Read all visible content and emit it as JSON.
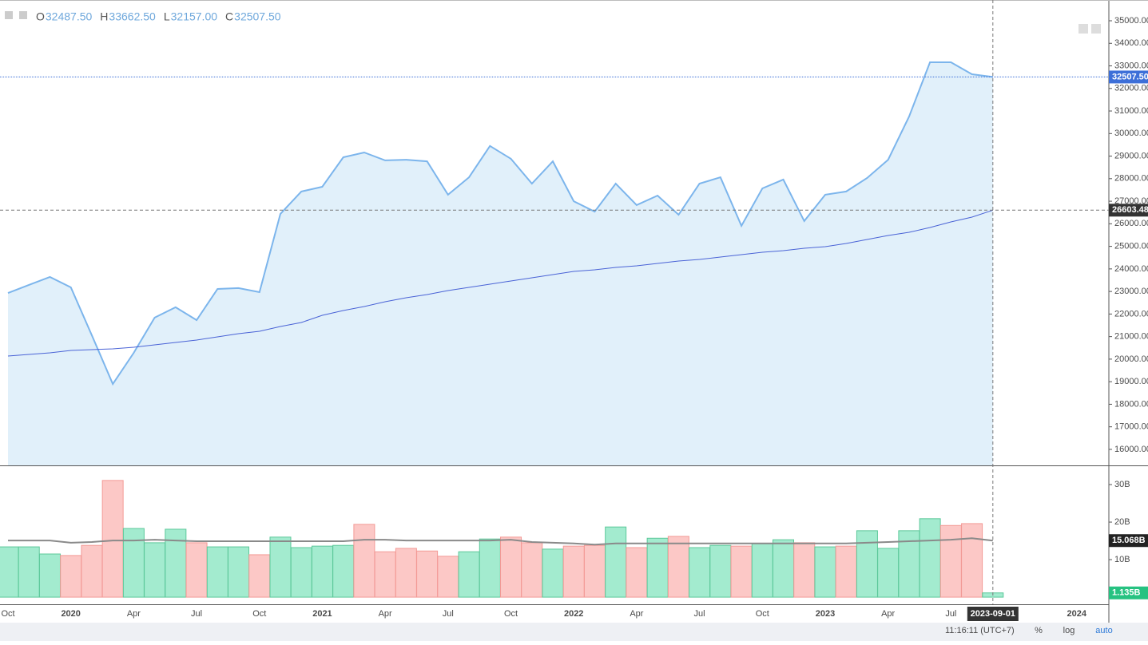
{
  "legend": {
    "keys": [
      "O",
      "H",
      "L",
      "C"
    ],
    "values": [
      32487.5,
      33662.5,
      32157,
      32507.5
    ],
    "value_labels": [
      "32487.50",
      "33662.50",
      "32157.00",
      "32507.50"
    ]
  },
  "status_bar": {
    "time": "11:16:11 (UTC+7)",
    "buttons": [
      "%",
      "log",
      "auto"
    ]
  },
  "crosshair_label": "2023-09-01",
  "chart_data": [
    {
      "type": "area",
      "x": [
        "2019-10",
        "2019-11",
        "2019-12",
        "2020-01",
        "2020-02",
        "2020-03",
        "2020-04",
        "2020-05",
        "2020-06",
        "2020-07",
        "2020-08",
        "2020-09",
        "2020-10",
        "2020-11",
        "2020-12",
        "2021-01",
        "2021-02",
        "2021-03",
        "2021-04",
        "2021-05",
        "2021-06",
        "2021-07",
        "2021-08",
        "2021-09",
        "2021-10",
        "2021-11",
        "2021-12",
        "2022-01",
        "2022-02",
        "2022-03",
        "2022-04",
        "2022-05",
        "2022-06",
        "2022-07",
        "2022-08",
        "2022-09",
        "2022-10",
        "2022-11",
        "2022-12",
        "2023-01",
        "2023-02",
        "2023-03",
        "2023-04",
        "2023-05",
        "2023-06",
        "2023-07",
        "2023-08",
        "2023-09"
      ],
      "series": [
        {
          "color": "#7cb5ec",
          "fill": "#e1f0fa",
          "values": [
            22930,
            23290,
            23640,
            23180,
            21060,
            18900,
            20280,
            21840,
            22300,
            21730,
            23110,
            23150,
            22970,
            26440,
            27430,
            27640,
            28950,
            29160,
            28810,
            28840,
            28770,
            27290,
            28060,
            29450,
            28880,
            27780,
            28770,
            27000,
            26540,
            27780,
            26830,
            27250,
            26400,
            27780,
            28060,
            25910,
            27570,
            27960,
            26120,
            27290,
            27430,
            28030,
            28840,
            30750,
            33160,
            33160,
            32630,
            32507.5
          ]
        },
        {
          "color": "#4a63d6",
          "values": [
            20138,
            20209,
            20279,
            20386,
            20421,
            20456,
            20527,
            20633,
            20739,
            20846,
            20987,
            21129,
            21235,
            21447,
            21624,
            21943,
            22155,
            22332,
            22544,
            22721,
            22863,
            23040,
            23181,
            23323,
            23464,
            23606,
            23747,
            23889,
            23960,
            24066,
            24136,
            24243,
            24349,
            24420,
            24526,
            24632,
            24738,
            24809,
            24915,
            24986,
            25127,
            25304,
            25481,
            25623,
            25835,
            26083,
            26295,
            26603.48
          ]
        }
      ],
      "ylim": [
        15290,
        35920
      ],
      "yticks": [
        {
          "value": 16000,
          "label": "16000.00"
        },
        {
          "value": 17000,
          "label": "17000.00"
        },
        {
          "value": 18000,
          "label": "18000.00"
        },
        {
          "value": 19000,
          "label": "19000.00"
        },
        {
          "value": 20000,
          "label": "20000.00"
        },
        {
          "value": 21000,
          "label": "21000.00"
        },
        {
          "value": 22000,
          "label": "22000.00"
        },
        {
          "value": 23000,
          "label": "23000.00"
        },
        {
          "value": 24000,
          "label": "24000.00"
        },
        {
          "value": 25000,
          "label": "25000.00"
        },
        {
          "value": 26000,
          "label": "26000.00"
        },
        {
          "value": 27000,
          "label": "27000.00"
        },
        {
          "value": 28000,
          "label": "28000.00"
        },
        {
          "value": 29000,
          "label": "29000.00"
        },
        {
          "value": 30000,
          "label": "30000.00"
        },
        {
          "value": 31000,
          "label": "31000.00"
        },
        {
          "value": 32000,
          "label": "32000.00"
        },
        {
          "value": 33000,
          "label": "33000.00"
        },
        {
          "value": 34000,
          "label": "34000.00"
        },
        {
          "value": 35000,
          "label": "35000.00"
        }
      ],
      "badges": [
        {
          "value": 32507.5,
          "label": "32507.50",
          "color": "#3d6fd8"
        },
        {
          "value": 26603.48,
          "label": "26603.48",
          "color": "#333333"
        }
      ]
    },
    {
      "type": "bar",
      "x": [
        "2019-10",
        "2019-11",
        "2019-12",
        "2020-01",
        "2020-02",
        "2020-03",
        "2020-04",
        "2020-05",
        "2020-06",
        "2020-07",
        "2020-08",
        "2020-09",
        "2020-10",
        "2020-11",
        "2020-12",
        "2021-01",
        "2021-02",
        "2021-03",
        "2021-04",
        "2021-05",
        "2021-06",
        "2021-07",
        "2021-08",
        "2021-09",
        "2021-10",
        "2021-11",
        "2021-12",
        "2022-01",
        "2022-02",
        "2022-03",
        "2022-04",
        "2022-05",
        "2022-06",
        "2022-07",
        "2022-08",
        "2022-09",
        "2022-10",
        "2022-11",
        "2022-12",
        "2023-01",
        "2023-02",
        "2023-03",
        "2023-04",
        "2023-05",
        "2023-06",
        "2023-07",
        "2023-08",
        "2023-09"
      ],
      "values": [
        13.4,
        13.4,
        11.5,
        11.1,
        13.8,
        31.1,
        18.3,
        14.5,
        18.1,
        14.5,
        13.4,
        13.4,
        11.3,
        16.0,
        13.2,
        13.6,
        13.8,
        19.4,
        12.1,
        13.0,
        12.3,
        10.9,
        12.1,
        15.5,
        16.0,
        14.5,
        12.8,
        13.6,
        13.8,
        18.7,
        13.2,
        15.7,
        16.2,
        13.2,
        13.8,
        13.6,
        14.3,
        15.3,
        14.5,
        13.4,
        13.6,
        17.7,
        13.0,
        17.7,
        20.9,
        19.1,
        19.6,
        1.135
      ],
      "colors": [
        "#a3ebcf",
        "#a3ebcf",
        "#a3ebcf",
        "#fcc8c6",
        "#fcc8c6",
        "#fcc8c6",
        "#a3ebcf",
        "#a3ebcf",
        "#a3ebcf",
        "#fcc8c6",
        "#a3ebcf",
        "#a3ebcf",
        "#fcc8c6",
        "#a3ebcf",
        "#a3ebcf",
        "#a3ebcf",
        "#a3ebcf",
        "#fcc8c6",
        "#fcc8c6",
        "#fcc8c6",
        "#fcc8c6",
        "#fcc8c6",
        "#a3ebcf",
        "#a3ebcf",
        "#fcc8c6",
        "#fcc8c6",
        "#a3ebcf",
        "#fcc8c6",
        "#fcc8c6",
        "#a3ebcf",
        "#fcc8c6",
        "#a3ebcf",
        "#fcc8c6",
        "#a3ebcf",
        "#a3ebcf",
        "#fcc8c6",
        "#a3ebcf",
        "#a3ebcf",
        "#fcc8c6",
        "#a3ebcf",
        "#fcc8c6",
        "#a3ebcf",
        "#a3ebcf",
        "#a3ebcf",
        "#a3ebcf",
        "#fcc8c6",
        "#fcc8c6",
        "#a3ebcf"
      ],
      "ma": {
        "color": "#8a8a8a",
        "values": [
          15.1,
          15.1,
          15.1,
          14.5,
          14.7,
          15.1,
          15.1,
          15.3,
          15.1,
          14.9,
          14.9,
          14.9,
          14.9,
          14.9,
          14.9,
          14.9,
          14.9,
          15.3,
          15.3,
          15.1,
          15.1,
          15.1,
          15.1,
          15.1,
          15.3,
          14.7,
          14.5,
          14.3,
          14.0,
          14.3,
          14.3,
          14.3,
          14.3,
          14.3,
          14.3,
          14.3,
          14.3,
          14.3,
          14.3,
          14.3,
          14.3,
          14.5,
          14.7,
          14.9,
          15.1,
          15.3,
          15.7,
          15.068
        ]
      },
      "ylim": [
        -1.9,
        34.9
      ],
      "yticks": [
        {
          "value": 10,
          "label": "10B"
        },
        {
          "value": 20,
          "label": "20B"
        },
        {
          "value": 30,
          "label": "30B"
        }
      ],
      "badges": [
        {
          "value": 15.068,
          "label": "15.068B",
          "color": "#222222"
        },
        {
          "value": 1.135,
          "label": "1.135B",
          "color": "#26c281"
        }
      ],
      "xticks": [
        {
          "value": "2019-10",
          "label": "Oct"
        },
        {
          "value": "2020-01",
          "label": "2020"
        },
        {
          "value": "2020-04",
          "label": "Apr"
        },
        {
          "value": "2020-07",
          "label": "Jul"
        },
        {
          "value": "2020-10",
          "label": "Oct"
        },
        {
          "value": "2021-01",
          "label": "2021"
        },
        {
          "value": "2021-04",
          "label": "Apr"
        },
        {
          "value": "2021-07",
          "label": "Jul"
        },
        {
          "value": "2021-10",
          "label": "Oct"
        },
        {
          "value": "2022-01",
          "label": "2022"
        },
        {
          "value": "2022-04",
          "label": "Apr"
        },
        {
          "value": "2022-07",
          "label": "Jul"
        },
        {
          "value": "2022-10",
          "label": "Oct"
        },
        {
          "value": "2023-01",
          "label": "2023"
        },
        {
          "value": "2023-04",
          "label": "Apr"
        },
        {
          "value": "2023-07",
          "label": "Jul"
        },
        {
          "value": "2024-01",
          "label": "2024"
        }
      ]
    }
  ]
}
